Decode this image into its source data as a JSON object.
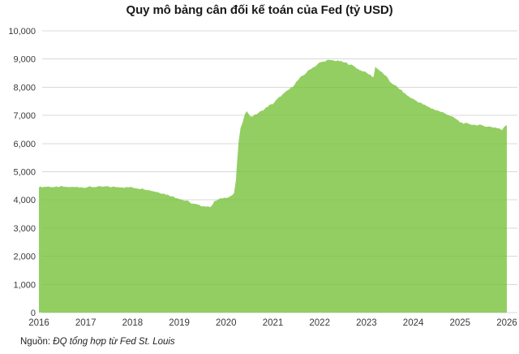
{
  "source": {
    "prefix": "Nguồn: ",
    "text": "ĐQ tổng hợp từ Fed St. Louis"
  },
  "chart_data": {
    "type": "area",
    "title": "Quy mô bảng cân đối kế toán của Fed (tỷ USD)",
    "xlabel": "",
    "ylabel": "",
    "xlim": [
      2016,
      2026
    ],
    "ylim": [
      0,
      10000
    ],
    "grid": "horizontal",
    "legend": "none",
    "x_ticks": [
      2016,
      2017,
      2018,
      2019,
      2020,
      2021,
      2022,
      2023,
      2024,
      2025,
      2026
    ],
    "y_ticks": [
      0,
      1000,
      2000,
      3000,
      4000,
      5000,
      6000,
      7000,
      8000,
      9000,
      10000
    ],
    "colors": {
      "area_fill": "#6FBE2E",
      "area_opacity": 0.75,
      "grid_color": "#d9d9d9",
      "tick_label_color": "#3a3a3a",
      "title_color": "#1a1a1a"
    },
    "texture_noise_amplitude": 25,
    "points": [
      [
        2016.0,
        4450
      ],
      [
        2016.08,
        4460
      ],
      [
        2016.17,
        4470
      ],
      [
        2016.25,
        4470
      ],
      [
        2016.33,
        4450
      ],
      [
        2016.42,
        4460
      ],
      [
        2016.5,
        4470
      ],
      [
        2016.58,
        4450
      ],
      [
        2016.67,
        4460
      ],
      [
        2016.75,
        4450
      ],
      [
        2016.83,
        4460
      ],
      [
        2016.92,
        4450
      ],
      [
        2017.0,
        4450
      ],
      [
        2017.08,
        4460
      ],
      [
        2017.17,
        4460
      ],
      [
        2017.25,
        4470
      ],
      [
        2017.33,
        4460
      ],
      [
        2017.42,
        4470
      ],
      [
        2017.5,
        4470
      ],
      [
        2017.58,
        4460
      ],
      [
        2017.67,
        4460
      ],
      [
        2017.75,
        4460
      ],
      [
        2017.83,
        4440
      ],
      [
        2017.92,
        4450
      ],
      [
        2018.0,
        4440
      ],
      [
        2018.08,
        4420
      ],
      [
        2018.17,
        4400
      ],
      [
        2018.25,
        4390
      ],
      [
        2018.33,
        4360
      ],
      [
        2018.42,
        4320
      ],
      [
        2018.5,
        4290
      ],
      [
        2018.58,
        4260
      ],
      [
        2018.67,
        4220
      ],
      [
        2018.75,
        4180
      ],
      [
        2018.83,
        4140
      ],
      [
        2018.92,
        4080
      ],
      [
        2019.0,
        4050
      ],
      [
        2019.08,
        3990
      ],
      [
        2019.17,
        3960
      ],
      [
        2019.25,
        3890
      ],
      [
        2019.33,
        3850
      ],
      [
        2019.42,
        3810
      ],
      [
        2019.5,
        3790
      ],
      [
        2019.58,
        3760
      ],
      [
        2019.67,
        3770
      ],
      [
        2019.71,
        3830
      ],
      [
        2019.75,
        3940
      ],
      [
        2019.83,
        4010
      ],
      [
        2019.92,
        4060
      ],
      [
        2020.0,
        4090
      ],
      [
        2020.08,
        4120
      ],
      [
        2020.13,
        4170
      ],
      [
        2020.17,
        4240
      ],
      [
        2020.21,
        4670
      ],
      [
        2020.23,
        5250
      ],
      [
        2020.27,
        6080
      ],
      [
        2020.31,
        6570
      ],
      [
        2020.35,
        6720
      ],
      [
        2020.4,
        7010
      ],
      [
        2020.44,
        7170
      ],
      [
        2020.48,
        7080
      ],
      [
        2020.52,
        6950
      ],
      [
        2020.58,
        6990
      ],
      [
        2020.67,
        7060
      ],
      [
        2020.75,
        7150
      ],
      [
        2020.83,
        7240
      ],
      [
        2020.92,
        7350
      ],
      [
        2021.0,
        7410
      ],
      [
        2021.08,
        7550
      ],
      [
        2021.17,
        7690
      ],
      [
        2021.25,
        7790
      ],
      [
        2021.33,
        7900
      ],
      [
        2021.42,
        8020
      ],
      [
        2021.5,
        8180
      ],
      [
        2021.58,
        8330
      ],
      [
        2021.67,
        8450
      ],
      [
        2021.75,
        8570
      ],
      [
        2021.83,
        8680
      ],
      [
        2021.92,
        8760
      ],
      [
        2022.0,
        8870
      ],
      [
        2022.08,
        8910
      ],
      [
        2022.17,
        8950
      ],
      [
        2022.25,
        8960
      ],
      [
        2022.33,
        8940
      ],
      [
        2022.42,
        8930
      ],
      [
        2022.5,
        8890
      ],
      [
        2022.58,
        8850
      ],
      [
        2022.67,
        8790
      ],
      [
        2022.75,
        8730
      ],
      [
        2022.83,
        8630
      ],
      [
        2022.92,
        8570
      ],
      [
        2023.0,
        8510
      ],
      [
        2023.08,
        8430
      ],
      [
        2023.15,
        8360
      ],
      [
        2023.19,
        8730
      ],
      [
        2023.25,
        8640
      ],
      [
        2023.33,
        8520
      ],
      [
        2023.42,
        8390
      ],
      [
        2023.5,
        8200
      ],
      [
        2023.58,
        8100
      ],
      [
        2023.67,
        7990
      ],
      [
        2023.75,
        7880
      ],
      [
        2023.83,
        7760
      ],
      [
        2023.92,
        7650
      ],
      [
        2024.0,
        7580
      ],
      [
        2024.08,
        7500
      ],
      [
        2024.17,
        7430
      ],
      [
        2024.25,
        7360
      ],
      [
        2024.33,
        7290
      ],
      [
        2024.42,
        7230
      ],
      [
        2024.5,
        7180
      ],
      [
        2024.58,
        7130
      ],
      [
        2024.67,
        7080
      ],
      [
        2024.75,
        7020
      ],
      [
        2024.83,
        6950
      ],
      [
        2024.92,
        6860
      ],
      [
        2025.0,
        6760
      ],
      [
        2025.08,
        6720
      ],
      [
        2025.17,
        6700
      ],
      [
        2025.25,
        6680
      ],
      [
        2025.33,
        6660
      ],
      [
        2025.42,
        6650
      ],
      [
        2025.5,
        6630
      ],
      [
        2025.58,
        6610
      ],
      [
        2025.67,
        6590
      ],
      [
        2025.75,
        6570
      ],
      [
        2025.83,
        6540
      ],
      [
        2025.9,
        6480
      ],
      [
        2025.96,
        6620
      ],
      [
        2026.0,
        6650
      ]
    ]
  }
}
